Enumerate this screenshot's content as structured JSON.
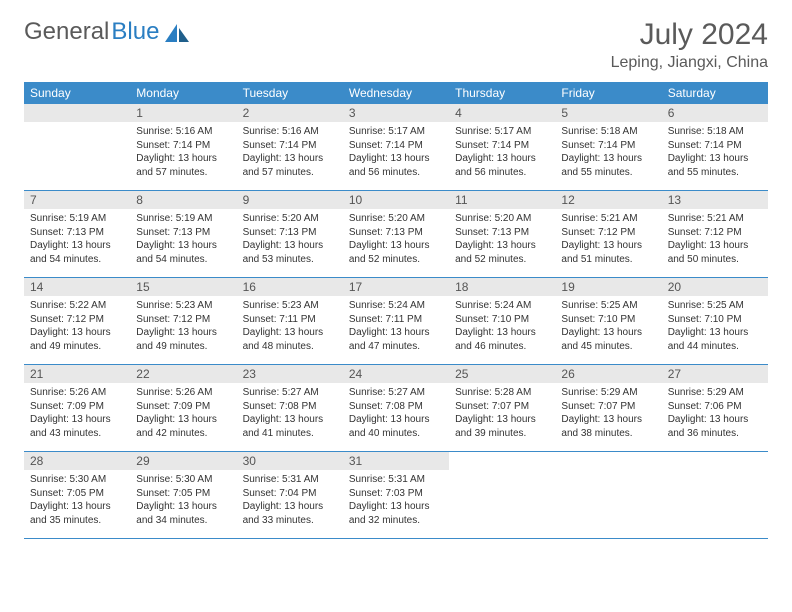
{
  "logo": {
    "text_gray": "General",
    "text_blue": "Blue"
  },
  "title": "July 2024",
  "location": "Leping, Jiangxi, China",
  "colors": {
    "header_bg": "#3b8bc9",
    "header_text": "#ffffff",
    "daynum_bg": "#e8e8e8",
    "border": "#3b8bc9",
    "title_color": "#5a5a5a",
    "body_text": "#333333"
  },
  "day_names": [
    "Sunday",
    "Monday",
    "Tuesday",
    "Wednesday",
    "Thursday",
    "Friday",
    "Saturday"
  ],
  "weeks": [
    [
      null,
      {
        "n": "1",
        "sr": "5:16 AM",
        "ss": "7:14 PM",
        "dl": "13 hours and 57 minutes."
      },
      {
        "n": "2",
        "sr": "5:16 AM",
        "ss": "7:14 PM",
        "dl": "13 hours and 57 minutes."
      },
      {
        "n": "3",
        "sr": "5:17 AM",
        "ss": "7:14 PM",
        "dl": "13 hours and 56 minutes."
      },
      {
        "n": "4",
        "sr": "5:17 AM",
        "ss": "7:14 PM",
        "dl": "13 hours and 56 minutes."
      },
      {
        "n": "5",
        "sr": "5:18 AM",
        "ss": "7:14 PM",
        "dl": "13 hours and 55 minutes."
      },
      {
        "n": "6",
        "sr": "5:18 AM",
        "ss": "7:14 PM",
        "dl": "13 hours and 55 minutes."
      }
    ],
    [
      {
        "n": "7",
        "sr": "5:19 AM",
        "ss": "7:13 PM",
        "dl": "13 hours and 54 minutes."
      },
      {
        "n": "8",
        "sr": "5:19 AM",
        "ss": "7:13 PM",
        "dl": "13 hours and 54 minutes."
      },
      {
        "n": "9",
        "sr": "5:20 AM",
        "ss": "7:13 PM",
        "dl": "13 hours and 53 minutes."
      },
      {
        "n": "10",
        "sr": "5:20 AM",
        "ss": "7:13 PM",
        "dl": "13 hours and 52 minutes."
      },
      {
        "n": "11",
        "sr": "5:20 AM",
        "ss": "7:13 PM",
        "dl": "13 hours and 52 minutes."
      },
      {
        "n": "12",
        "sr": "5:21 AM",
        "ss": "7:12 PM",
        "dl": "13 hours and 51 minutes."
      },
      {
        "n": "13",
        "sr": "5:21 AM",
        "ss": "7:12 PM",
        "dl": "13 hours and 50 minutes."
      }
    ],
    [
      {
        "n": "14",
        "sr": "5:22 AM",
        "ss": "7:12 PM",
        "dl": "13 hours and 49 minutes."
      },
      {
        "n": "15",
        "sr": "5:23 AM",
        "ss": "7:12 PM",
        "dl": "13 hours and 49 minutes."
      },
      {
        "n": "16",
        "sr": "5:23 AM",
        "ss": "7:11 PM",
        "dl": "13 hours and 48 minutes."
      },
      {
        "n": "17",
        "sr": "5:24 AM",
        "ss": "7:11 PM",
        "dl": "13 hours and 47 minutes."
      },
      {
        "n": "18",
        "sr": "5:24 AM",
        "ss": "7:10 PM",
        "dl": "13 hours and 46 minutes."
      },
      {
        "n": "19",
        "sr": "5:25 AM",
        "ss": "7:10 PM",
        "dl": "13 hours and 45 minutes."
      },
      {
        "n": "20",
        "sr": "5:25 AM",
        "ss": "7:10 PM",
        "dl": "13 hours and 44 minutes."
      }
    ],
    [
      {
        "n": "21",
        "sr": "5:26 AM",
        "ss": "7:09 PM",
        "dl": "13 hours and 43 minutes."
      },
      {
        "n": "22",
        "sr": "5:26 AM",
        "ss": "7:09 PM",
        "dl": "13 hours and 42 minutes."
      },
      {
        "n": "23",
        "sr": "5:27 AM",
        "ss": "7:08 PM",
        "dl": "13 hours and 41 minutes."
      },
      {
        "n": "24",
        "sr": "5:27 AM",
        "ss": "7:08 PM",
        "dl": "13 hours and 40 minutes."
      },
      {
        "n": "25",
        "sr": "5:28 AM",
        "ss": "7:07 PM",
        "dl": "13 hours and 39 minutes."
      },
      {
        "n": "26",
        "sr": "5:29 AM",
        "ss": "7:07 PM",
        "dl": "13 hours and 38 minutes."
      },
      {
        "n": "27",
        "sr": "5:29 AM",
        "ss": "7:06 PM",
        "dl": "13 hours and 36 minutes."
      }
    ],
    [
      {
        "n": "28",
        "sr": "5:30 AM",
        "ss": "7:05 PM",
        "dl": "13 hours and 35 minutes."
      },
      {
        "n": "29",
        "sr": "5:30 AM",
        "ss": "7:05 PM",
        "dl": "13 hours and 34 minutes."
      },
      {
        "n": "30",
        "sr": "5:31 AM",
        "ss": "7:04 PM",
        "dl": "13 hours and 33 minutes."
      },
      {
        "n": "31",
        "sr": "5:31 AM",
        "ss": "7:03 PM",
        "dl": "13 hours and 32 minutes."
      },
      null,
      null,
      null
    ]
  ],
  "labels": {
    "sunrise": "Sunrise:",
    "sunset": "Sunset:",
    "daylight": "Daylight:"
  }
}
